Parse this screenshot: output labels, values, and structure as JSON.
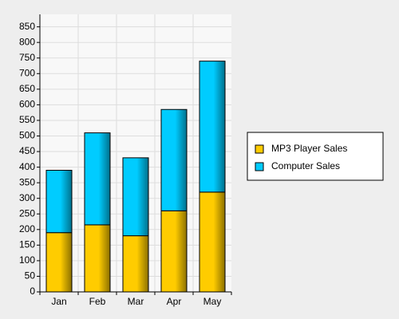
{
  "chart_data": {
    "type": "stacked_bar",
    "categories": [
      "Jan",
      "Feb",
      "Mar",
      "Apr",
      "May"
    ],
    "series": [
      {
        "name": "MP3 Player Sales",
        "color": "#ffcc00",
        "values": [
          190,
          215,
          180,
          260,
          320
        ]
      },
      {
        "name": "Computer Sales",
        "color": "#00ccff",
        "values": [
          200,
          295,
          250,
          325,
          420
        ]
      }
    ],
    "ylim": [
      0,
      890
    ],
    "yticks": [
      0,
      50,
      100,
      150,
      200,
      250,
      300,
      350,
      400,
      450,
      500,
      550,
      600,
      650,
      700,
      750,
      800,
      850
    ],
    "grid": true,
    "legend": "right"
  }
}
